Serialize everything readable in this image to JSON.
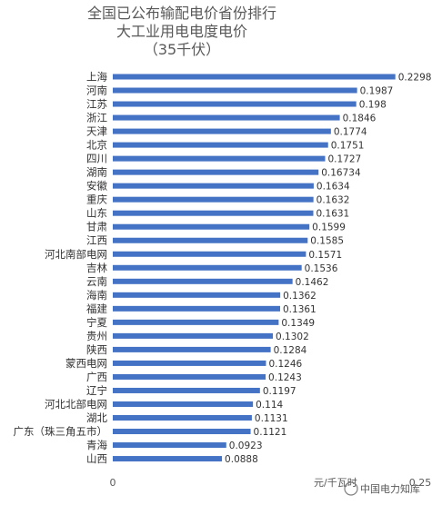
{
  "chart_data": {
    "type": "bar",
    "orientation": "horizontal",
    "title": [
      "全国已公布输配电价省份排行",
      "大工业用电电度电价",
      "（35千伏）"
    ],
    "categories": [
      "上海",
      "河南",
      "江苏",
      "浙江",
      "天津",
      "北京",
      "四川",
      "湖南",
      "安徽",
      "重庆",
      "山东",
      "甘肃",
      "江西",
      "河北南部电网",
      "吉林",
      "云南",
      "海南",
      "福建",
      "宁夏",
      "贵州",
      "陕西",
      "蒙西电网",
      "广西",
      "辽宁",
      "河北北部电网",
      "湖北",
      "广东（珠三角五市）",
      "青海",
      "山西"
    ],
    "values": [
      0.2298,
      0.1987,
      0.198,
      0.1846,
      0.1774,
      0.1751,
      0.1727,
      0.16734,
      0.1634,
      0.1632,
      0.1631,
      0.1599,
      0.1585,
      0.1571,
      0.1536,
      0.1462,
      0.1362,
      0.1361,
      0.1349,
      0.1302,
      0.1284,
      0.1246,
      0.1243,
      0.1197,
      0.114,
      0.1131,
      0.1121,
      0.0923,
      0.0888
    ],
    "value_labels": [
      "0.2298",
      "0.1987",
      "0.198",
      "0.1846",
      "0.1774",
      "0.1751",
      "0.1727",
      "0.16734",
      "0.1634",
      "0.1632",
      "0.1631",
      "0.1599",
      "0.1585",
      "0.1571",
      "0.1536",
      "0.1462",
      "0.1362",
      "0.1361",
      "0.1349",
      "0.1302",
      "0.1284",
      "0.1246",
      "0.1243",
      "0.1197",
      "0.114",
      "0.1131",
      "0.1121",
      "0.0923",
      "0.0888"
    ],
    "xlim": [
      0,
      0.25
    ],
    "x_ticks": [
      "0",
      "0.25"
    ],
    "unit_label": "元/千瓦时",
    "bar_color": "#4472c4",
    "grid": false,
    "legend": "none"
  },
  "watermark": "中国电力知库"
}
